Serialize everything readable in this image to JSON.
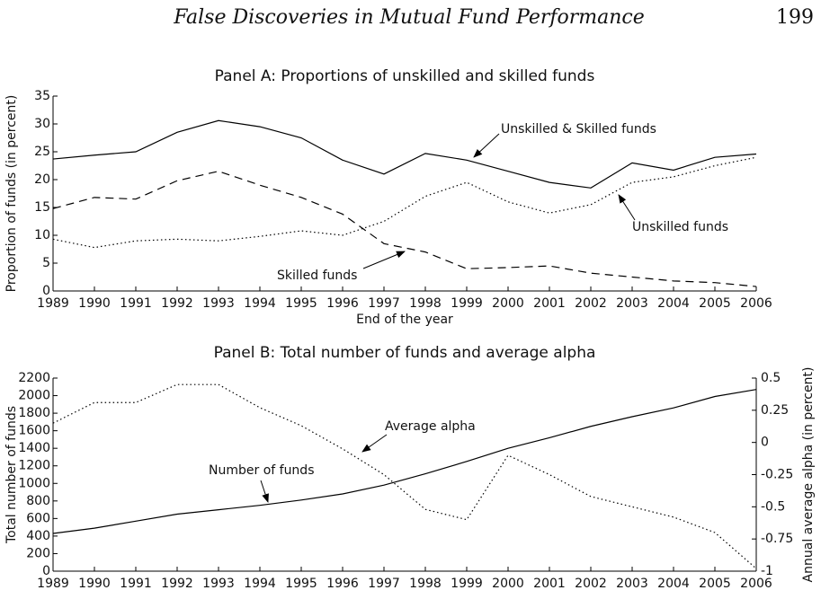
{
  "header": {
    "title": "False Discoveries in Mutual Fund Performance",
    "page": "199"
  },
  "chart_data": [
    {
      "type": "line",
      "title": "Panel A: Proportions of unskilled and skilled funds",
      "x_label": "End of the year",
      "y_label": "Proportion of funds (in percent)",
      "categories": [
        "1989",
        "1990",
        "1991",
        "1992",
        "1993",
        "1994",
        "1995",
        "1996",
        "1997",
        "1998",
        "1999",
        "2000",
        "2001",
        "2002",
        "2003",
        "2004",
        "2005",
        "2006"
      ],
      "ylim": [
        0,
        35
      ],
      "yticks": [
        0,
        5,
        10,
        15,
        20,
        25,
        30,
        35
      ],
      "series": [
        {
          "name": "Unskilled & Skilled funds",
          "color": "#000000",
          "dash": "solid",
          "values": [
            23.7,
            24.4,
            25.0,
            28.5,
            30.6,
            29.5,
            27.5,
            23.5,
            21.0,
            24.7,
            23.5,
            21.5,
            19.5,
            18.5,
            23.0,
            21.7,
            24.0,
            24.6
          ]
        },
        {
          "name": "Skilled funds",
          "color": "#000000",
          "dash": "dashed",
          "values": [
            14.8,
            16.8,
            16.5,
            19.8,
            21.5,
            19.0,
            16.8,
            13.8,
            8.5,
            7.0,
            4.0,
            4.2,
            4.5,
            3.2,
            2.5,
            1.8,
            1.5,
            0.8
          ]
        },
        {
          "name": "Unskilled funds",
          "color": "#000000",
          "dash": "dotted",
          "values": [
            9.3,
            7.8,
            9.0,
            9.3,
            9.0,
            9.8,
            10.8,
            10.0,
            12.5,
            17.0,
            19.5,
            16.0,
            14.0,
            15.5,
            19.5,
            20.5,
            22.5,
            24.0
          ]
        }
      ]
    },
    {
      "type": "line",
      "title": "Panel B: Total number of funds and average alpha",
      "y_label": "Total number of funds",
      "y2_label": "Annual average alpha (in percent)",
      "categories": [
        "1989",
        "1990",
        "1991",
        "1992",
        "1993",
        "1994",
        "1995",
        "1996",
        "1997",
        "1998",
        "1999",
        "2000",
        "2001",
        "2002",
        "2003",
        "2004",
        "2005",
        "2006"
      ],
      "ylim": [
        0,
        2200
      ],
      "yticks": [
        0,
        200,
        400,
        600,
        800,
        1000,
        1200,
        1400,
        1600,
        1800,
        2000,
        2200
      ],
      "y2lim": [
        -1,
        0.5
      ],
      "y2ticks": [
        -1,
        -0.75,
        -0.5,
        -0.25,
        0,
        0.25,
        0.5
      ],
      "series": [
        {
          "name": "Number of funds",
          "color": "#000000",
          "dash": "solid",
          "values": [
            430,
            490,
            570,
            650,
            700,
            750,
            810,
            880,
            980,
            1110,
            1250,
            1400,
            1520,
            1650,
            1760,
            1860,
            1990,
            2070
          ]
        },
        {
          "name": "Average alpha",
          "color": "#000000",
          "dash": "dotted",
          "axis": "y2",
          "values": [
            0.15,
            0.31,
            0.31,
            0.45,
            0.45,
            0.27,
            0.13,
            -0.05,
            -0.25,
            -0.52,
            -0.6,
            -0.1,
            -0.25,
            -0.42,
            -0.5,
            -0.58,
            -0.7,
            -0.98
          ]
        }
      ]
    }
  ]
}
